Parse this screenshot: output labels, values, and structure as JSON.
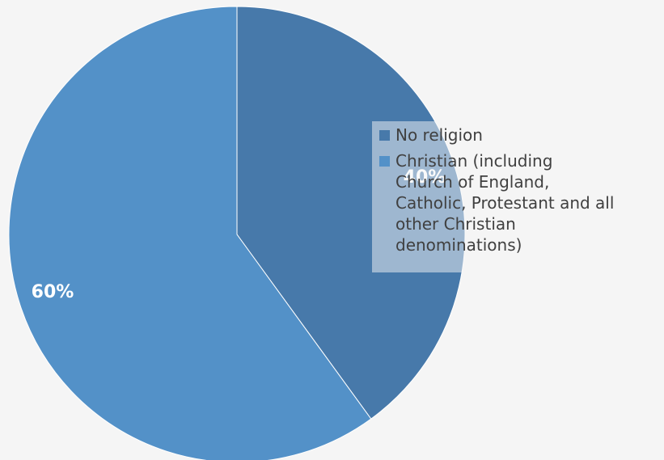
{
  "chart_data": {
    "type": "pie",
    "slices": [
      {
        "label": "No religion",
        "value": 40,
        "data_label": "40%",
        "color": "#4779aa"
      },
      {
        "label": "Christian (including Church of England, Catholic, Protestant and all other Christian denominations)",
        "value": 60,
        "data_label": "60%",
        "color": "#5391c8"
      }
    ],
    "title": "",
    "legend_position": "right",
    "start_angle_deg": 0,
    "direction": "clockwise"
  },
  "legend": {
    "items": [
      {
        "text": "No religion",
        "color": "#4779aa"
      },
      {
        "text": "Christian (including\nChurch of England,\nCatholic, Protestant and all\nother Christian\ndenominations)",
        "color": "#5391c8"
      }
    ]
  }
}
